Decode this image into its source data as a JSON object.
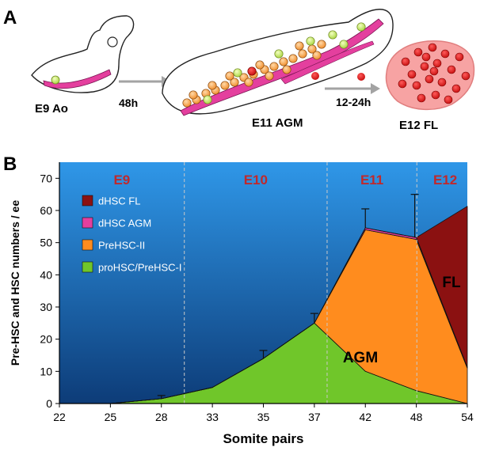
{
  "panels": {
    "a_letter": "A",
    "b_letter": "B"
  },
  "schematic": {
    "stage1": "E9 Ao",
    "stage2": "E11 AGM",
    "stage3": "E12 FL",
    "arrow1": "48h",
    "arrow2": "12-24h"
  },
  "colors": {
    "pro_green": "#70c62a",
    "pre2_orange": "#ff8c1e",
    "agm_magenta": "#e43f9e",
    "fl_darkred": "#8b1111",
    "stage_red": "#c0292c",
    "plot_top": "#2f97e8",
    "plot_bottom": "#0d3c78"
  },
  "chart_data": {
    "type": "area",
    "xlabel": "Somite pairs",
    "ylabel": "Pre-HSC and HSC numbers / ee",
    "x": [
      "22",
      "25",
      "28",
      "33",
      "35",
      "37",
      "42",
      "48",
      "54"
    ],
    "ylim": [
      0,
      75
    ],
    "yticks": [
      "0",
      "10",
      "20",
      "30",
      "40",
      "50",
      "60",
      "70"
    ],
    "stages": [
      "E9",
      "E10",
      "E11",
      "E12"
    ],
    "legend": [
      "dHSC FL",
      "dHSC AGM",
      "PreHSC-II",
      "proHSC/PreHSC-I"
    ],
    "legend_position": "top-left",
    "series": [
      {
        "name": "proHSC/PreHSC-I",
        "color": "#70c62a",
        "values": [
          0,
          0,
          1.5,
          5,
          14,
          25,
          10,
          4,
          0
        ]
      },
      {
        "name": "PreHSC-II",
        "color": "#ff8c1e",
        "values": [
          0,
          0,
          0,
          0,
          0,
          0,
          44,
          47,
          11
        ]
      },
      {
        "name": "dHSC AGM",
        "color": "#e43f9e",
        "values": [
          0,
          0,
          0,
          0,
          0,
          0,
          0.6,
          0.6,
          0.3
        ]
      },
      {
        "name": "dHSC FL",
        "color": "#8b1111",
        "values": [
          0,
          0,
          0,
          0,
          0,
          0,
          0,
          0,
          50
        ]
      }
    ],
    "error_bars": [
      {
        "x": "28",
        "y": 2.5
      },
      {
        "x": "35",
        "y": 16.5
      },
      {
        "x": "37",
        "y": 28
      },
      {
        "x": "42",
        "y": 60.5
      },
      {
        "x": "48",
        "y": 65
      }
    ],
    "region_labels": [
      "AGM",
      "FL"
    ]
  }
}
